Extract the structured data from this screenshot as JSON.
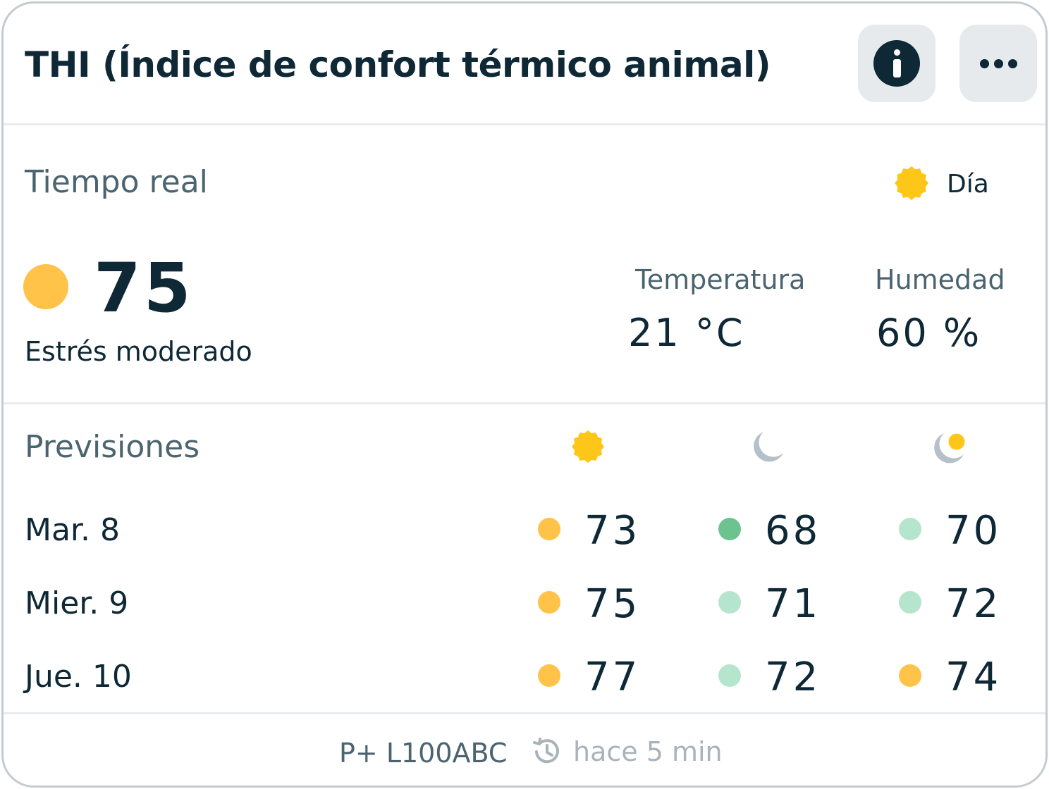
{
  "header": {
    "title": "THI (Índice de confort térmico animal)",
    "info_icon": "info-icon",
    "more_icon": "more-horizontal-icon"
  },
  "realtime": {
    "title": "Tiempo real",
    "period_icon": "sun-icon",
    "period_label": "Día",
    "value": "75",
    "status": "Estrés moderado",
    "status_color": "#ffc34a",
    "temperature_label": "Temperatura",
    "temperature_value": "21 °C",
    "humidity_label": "Humedad",
    "humidity_value": "60 %"
  },
  "forecast": {
    "title": "Previsiones",
    "columns": [
      {
        "icon": "sun-icon"
      },
      {
        "icon": "moon-icon"
      },
      {
        "icon": "moon-sun-icon"
      }
    ],
    "rows": [
      {
        "day": "Mar. 8",
        "values": [
          "73",
          "68",
          "70"
        ],
        "colors": [
          "#ffc34a",
          "#6cc38f",
          "#b5e5cc"
        ]
      },
      {
        "day": "Mier. 9",
        "values": [
          "75",
          "71",
          "72"
        ],
        "colors": [
          "#ffc34a",
          "#b5e5cc",
          "#b5e5cc"
        ]
      },
      {
        "day": "Jue. 10",
        "values": [
          "77",
          "72",
          "74"
        ],
        "colors": [
          "#ffc34a",
          "#b5e5cc",
          "#ffc34a"
        ]
      }
    ]
  },
  "footer": {
    "device": "P+ L100ABC",
    "history_icon": "history-icon",
    "updated": "hace 5 min"
  },
  "colors": {
    "sun": "#ffc61a",
    "moon": "#b6c0c9",
    "text_dark": "#0e2836",
    "text_muted": "#4b6470"
  }
}
